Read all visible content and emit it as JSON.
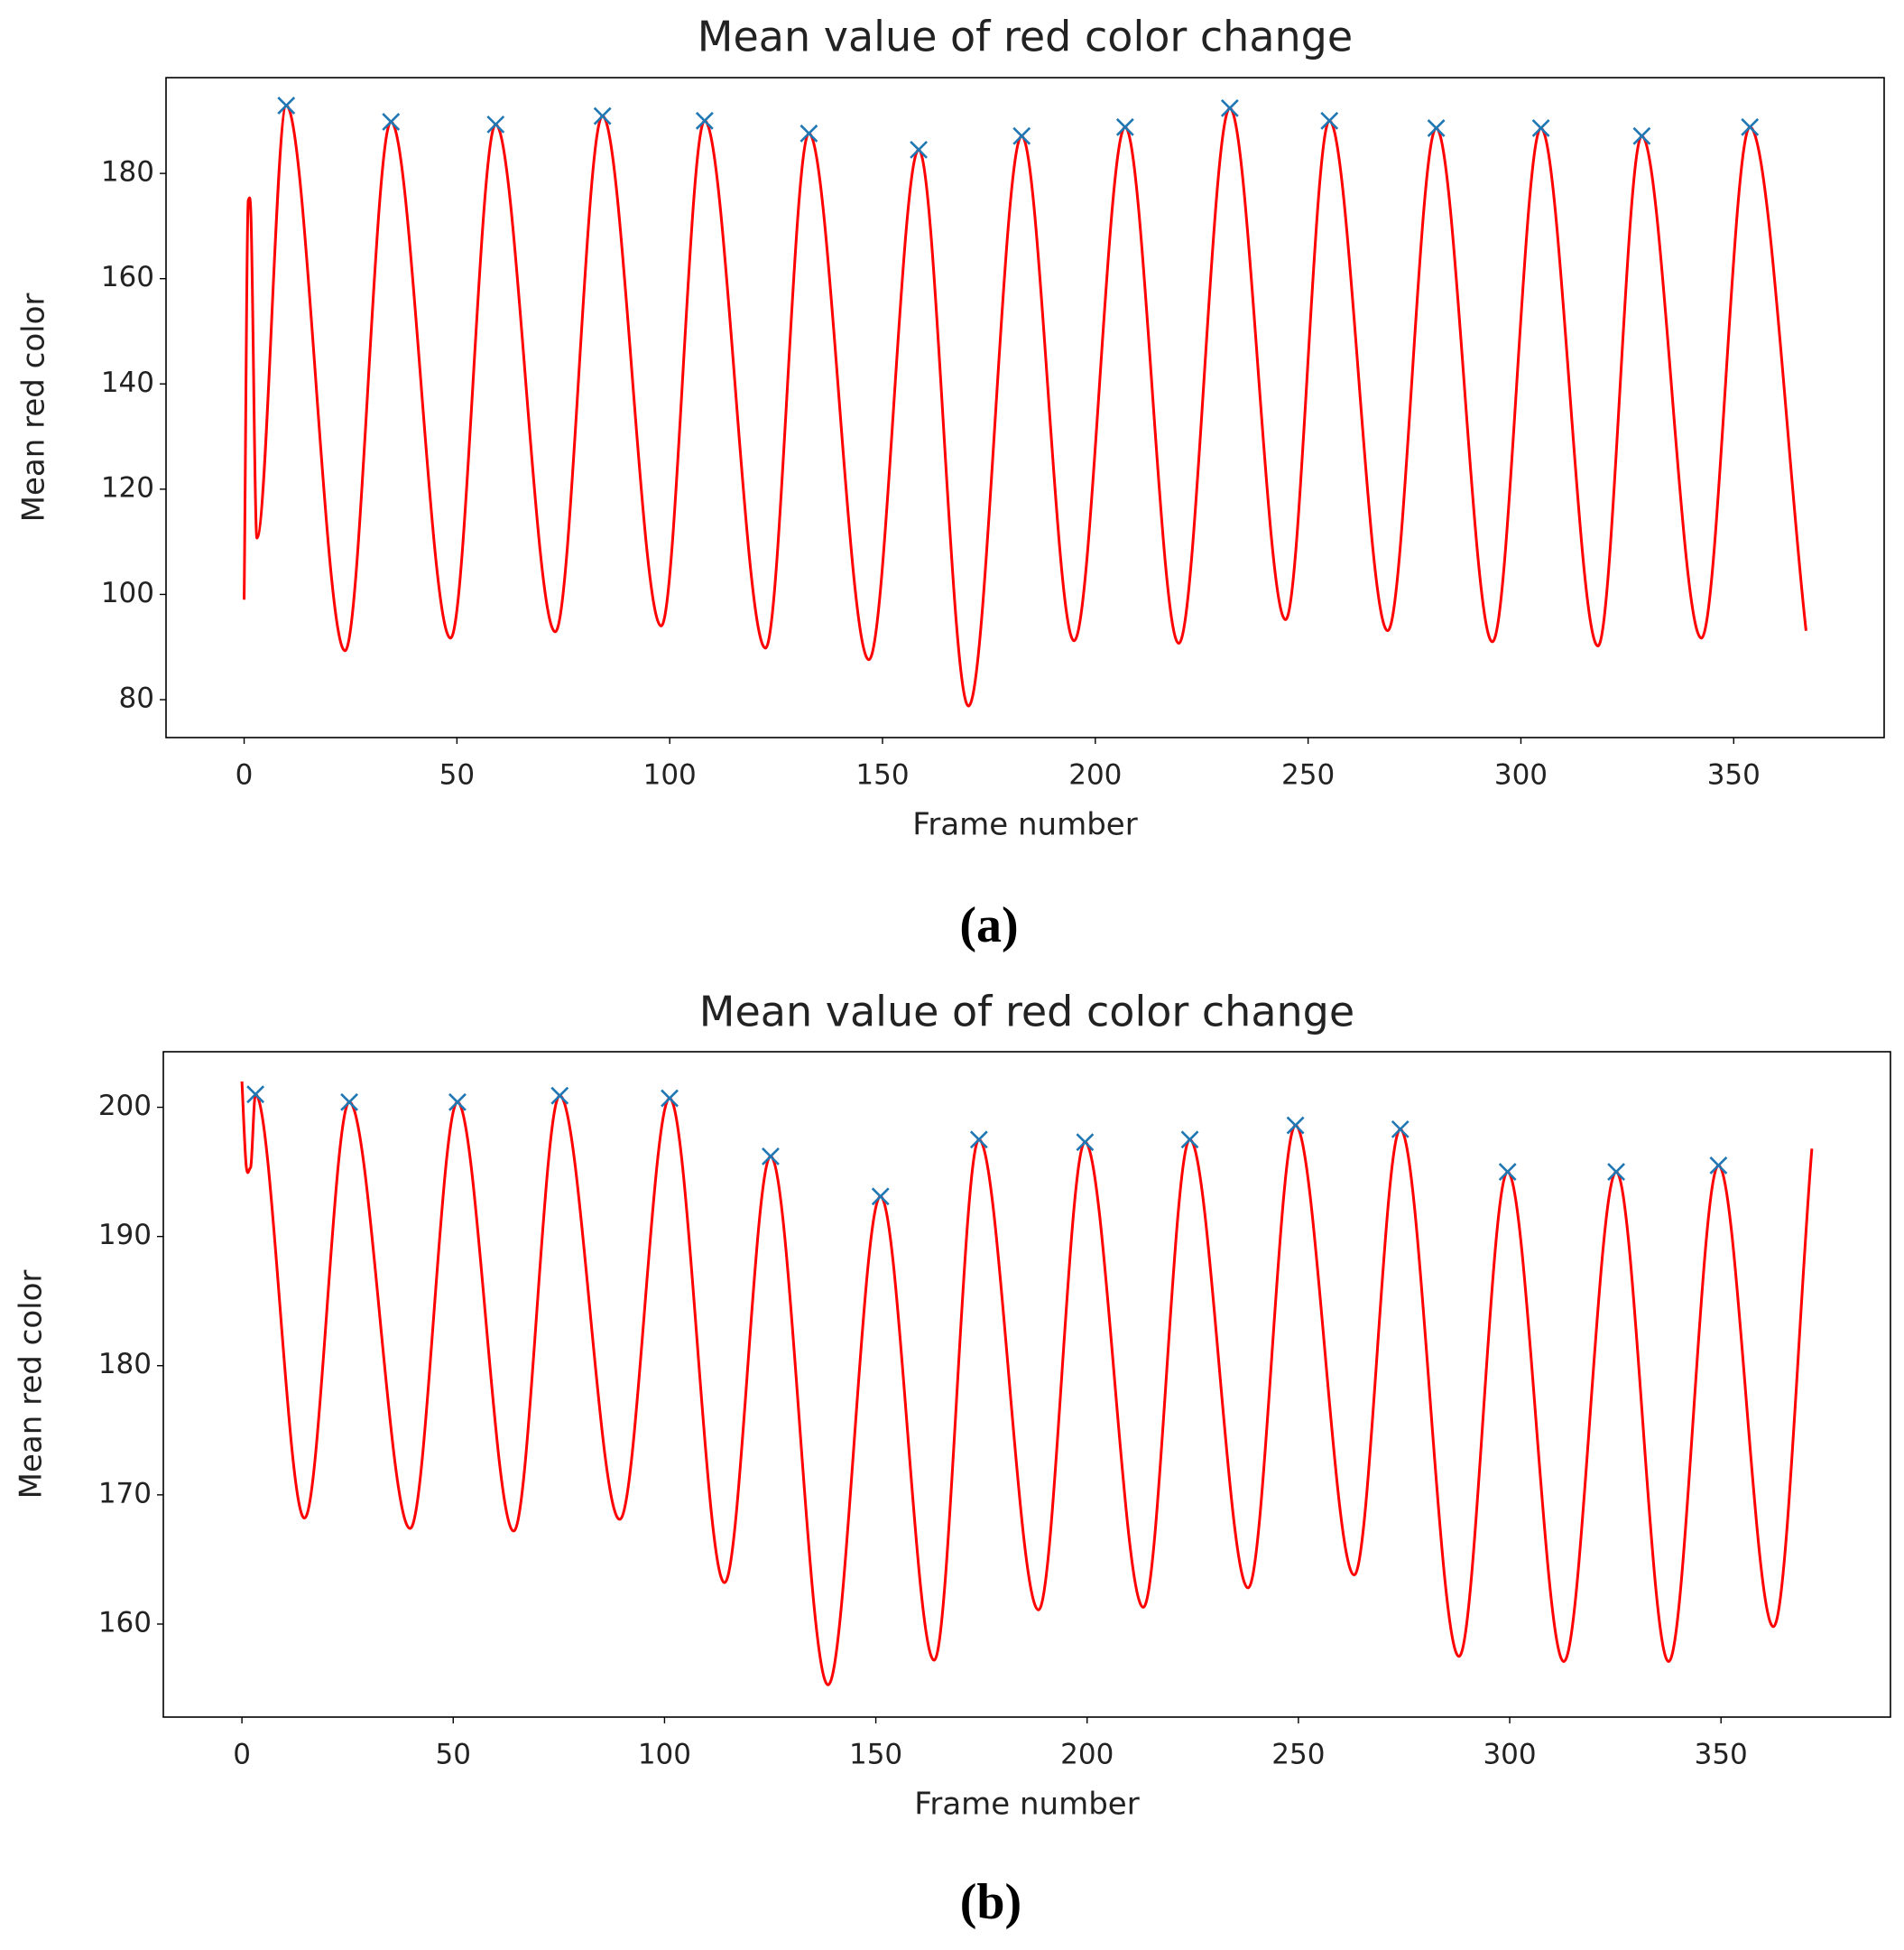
{
  "chart_data": [
    {
      "type": "line",
      "title": "Mean value of red color change",
      "xlabel": "Frame number",
      "ylabel": "Mean red color",
      "label": "(a)",
      "xlim": [
        -18.35,
        385.35
      ],
      "ylim": [
        72.8,
        198.2
      ],
      "xticks": [
        0,
        50,
        100,
        150,
        200,
        250,
        300,
        350
      ],
      "yticks": [
        80,
        100,
        120,
        140,
        160,
        180
      ],
      "series": [
        {
          "color": "#ff0000",
          "x": [
            0,
            1,
            1.6,
            3,
            9.9,
            23.7,
            34.5,
            48.5,
            59.1,
            73.1,
            84.2,
            98,
            108.2,
            122.5,
            132.7,
            146.8,
            158.5,
            170.2,
            182.7,
            195,
            207,
            219.6,
            231.6,
            244.7,
            255,
            268.7,
            280.1,
            293.3,
            304.7,
            318.1,
            328.4,
            342.4,
            353.8,
            367
          ],
          "values": [
            99,
            175,
            172,
            110.7,
            192.9,
            89.3,
            189.8,
            91.7,
            189.3,
            92.9,
            190.9,
            94,
            190,
            89.8,
            187.6,
            87.6,
            184.5,
            78.8,
            187.1,
            91.2,
            188.8,
            90.7,
            192.4,
            95.2,
            190,
            93.1,
            188.6,
            91,
            188.6,
            90.2,
            187.1,
            91.7,
            188.8,
            93.1
          ]
        }
      ],
      "peaks": {
        "color": "#1f77b4",
        "marker": "x",
        "x": [
          9.9,
          34.5,
          59.1,
          84.2,
          108.2,
          132.7,
          158.5,
          182.7,
          207,
          231.6,
          255,
          280.1,
          304.7,
          328.4,
          353.8
        ],
        "values": [
          192.9,
          189.8,
          189.3,
          190.9,
          190,
          187.6,
          184.5,
          187.1,
          188.8,
          192.4,
          190,
          188.6,
          188.6,
          187.1,
          188.8
        ]
      }
    },
    {
      "type": "line",
      "title": "Mean value of red color change",
      "xlabel": "Frame number",
      "ylabel": "Mean red color",
      "label": "(b)",
      "xlim": [
        -18.6,
        390.1
      ],
      "ylim": [
        152.8,
        204.3
      ],
      "xticks": [
        0,
        50,
        100,
        150,
        200,
        250,
        300,
        350
      ],
      "yticks": [
        160,
        170,
        180,
        190,
        200
      ],
      "series": [
        {
          "color": "#ff0000",
          "x": [
            0,
            1,
            2,
            3.2,
            14.8,
            25.4,
            39.8,
            51,
            64.3,
            75.2,
            89.4,
            101.2,
            114.2,
            125.1,
            138.7,
            151.1,
            163.8,
            174.4,
            188.5,
            199.5,
            213.3,
            224.3,
            238.1,
            249.3,
            263.2,
            274.1,
            288,
            299.5,
            312.8,
            325.2,
            337.6,
            349.4,
            362.4,
            371.5
          ],
          "values": [
            202,
            195.5,
            195.3,
            201,
            168.2,
            200.4,
            167.4,
            200.4,
            167.2,
            200.9,
            168.1,
            200.7,
            163.2,
            196.2,
            155.3,
            193.1,
            157.2,
            197.5,
            161.1,
            197.3,
            161.3,
            197.5,
            162.8,
            198.6,
            163.8,
            198.3,
            157.5,
            195,
            157.1,
            195,
            157.1,
            195.5,
            159.8,
            196.8
          ]
        }
      ],
      "peaks": {
        "color": "#1f77b4",
        "marker": "x",
        "x": [
          3.2,
          25.4,
          51,
          75.2,
          101.2,
          125.1,
          151.1,
          174.4,
          199.5,
          224.3,
          249.3,
          274.1,
          299.5,
          325.2,
          349.4
        ],
        "values": [
          201,
          200.4,
          200.4,
          200.9,
          200.7,
          196.2,
          193.1,
          197.5,
          197.3,
          197.5,
          198.6,
          198.3,
          195,
          195,
          195.5
        ]
      }
    }
  ]
}
